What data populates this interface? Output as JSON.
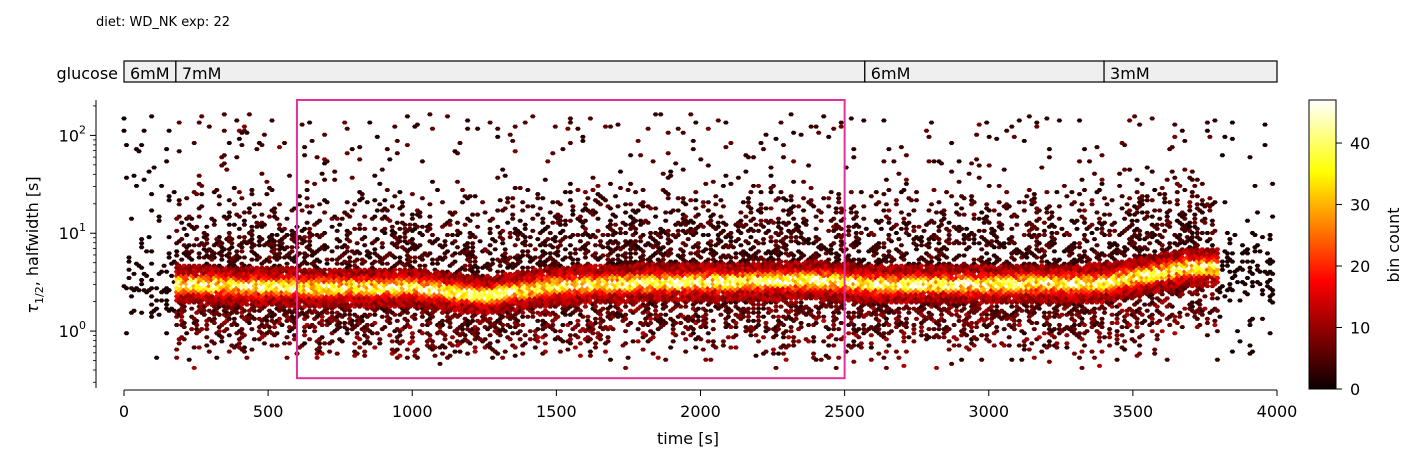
{
  "header": {
    "meta": "diet: WD_NK  exp: 22"
  },
  "glucose_bar": {
    "label": "glucose",
    "segments": [
      {
        "label": "6mM",
        "start": 0,
        "end": 180
      },
      {
        "label": "7mM",
        "start": 180,
        "end": 2570
      },
      {
        "label": "6mM",
        "start": 2570,
        "end": 3400
      },
      {
        "label": "3mM",
        "start": 3400,
        "end": 4000
      }
    ]
  },
  "chart_data": {
    "type": "heatmap",
    "subtype": "hexbin",
    "xlabel": "time [s]",
    "ylabel": "τ1/2, halfwidth [s]",
    "ylabel_main": "τ",
    "ylabel_sub": "1/2",
    "ylabel_rest": ", halfwidth [s]",
    "xlim": [
      0,
      4000
    ],
    "ylim": [
      0.25,
      230
    ],
    "yscale": "log",
    "x_ticks": [
      0,
      500,
      1000,
      1500,
      2000,
      2500,
      3000,
      3500,
      4000
    ],
    "x_tick_labels": [
      "0",
      "500",
      "1000",
      "1500",
      "2000",
      "2500",
      "3000",
      "3500",
      "4000"
    ],
    "y_ticks": [
      1,
      10,
      100
    ],
    "y_tick_labels": [
      "10⁰",
      "10¹",
      "10²"
    ],
    "y_tick_bases": [
      "10",
      "10",
      "10"
    ],
    "y_tick_exps": [
      "0",
      "1",
      "2"
    ],
    "colormap": "hot",
    "colorbar": {
      "label": "bin count",
      "min": 0,
      "max": 47,
      "ticks": [
        0,
        10,
        20,
        30,
        40
      ],
      "tick_labels": [
        "0",
        "10",
        "20",
        "30",
        "40"
      ]
    },
    "data_range_x": [
      0,
      4000
    ],
    "dense_band": {
      "x_start": 180,
      "x_end": 3800,
      "y_center_by_x": [
        [
          200,
          3.0
        ],
        [
          600,
          2.8
        ],
        [
          1000,
          2.8
        ],
        [
          1250,
          2.3
        ],
        [
          1500,
          2.9
        ],
        [
          1800,
          3.1
        ],
        [
          2100,
          3.2
        ],
        [
          2400,
          3.3
        ],
        [
          2600,
          3.0
        ],
        [
          3000,
          3.0
        ],
        [
          3400,
          3.1
        ],
        [
          3700,
          4.5
        ]
      ],
      "peak_count": 47
    },
    "highlight_rect": {
      "x_range": [
        600,
        2500
      ],
      "y_range": [
        0.33,
        230
      ],
      "color": "#e0309a"
    }
  }
}
